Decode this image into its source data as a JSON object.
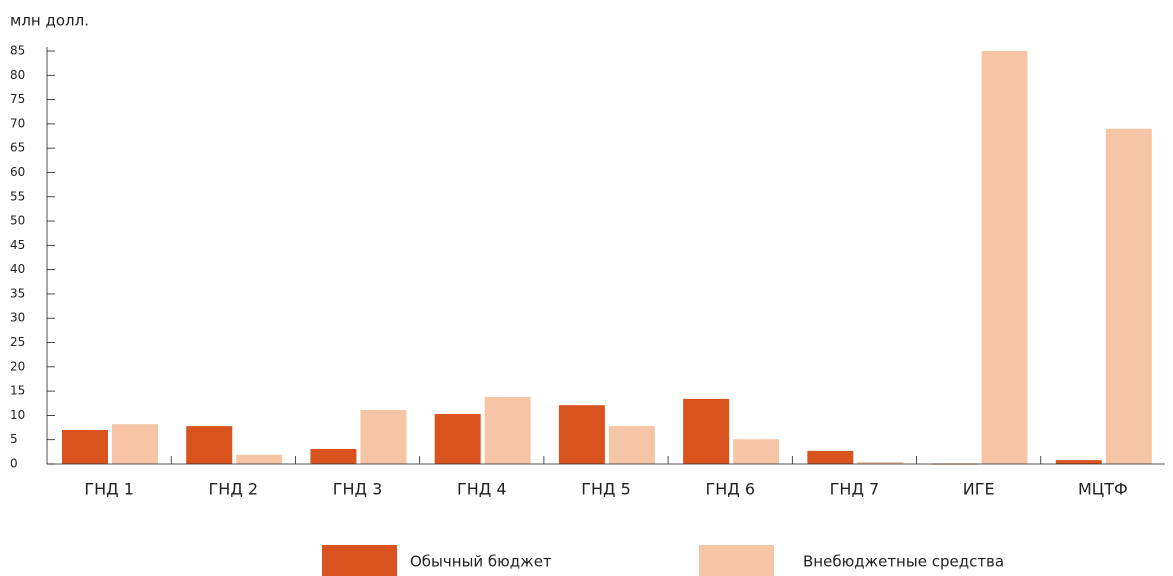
{
  "chart_data": {
    "type": "bar",
    "y_label": "млн долл.",
    "categories": [
      "ГНД 1",
      "ГНД 2",
      "ГНД 3",
      "ГНД 4",
      "ГНД 5",
      "ГНД 6",
      "ГНД 7",
      "ИГЕ",
      "МЦТФ"
    ],
    "series": [
      {
        "name": "Обычный бюджет",
        "color": "#d9531e",
        "values": [
          7.0,
          7.8,
          3.1,
          10.3,
          12.1,
          13.4,
          2.7,
          0.1,
          0.8
        ]
      },
      {
        "name": "Внебюджетные средства",
        "color": "#f5c5a5",
        "values": [
          8.2,
          1.9,
          11.1,
          13.8,
          7.8,
          5.1,
          0.4,
          85,
          69
        ]
      }
    ],
    "ylim": [
      0,
      85
    ],
    "yticks": [
      0,
      5,
      10,
      15,
      20,
      25,
      30,
      35,
      40,
      45,
      50,
      55,
      60,
      65,
      70,
      75,
      80,
      85
    ]
  }
}
